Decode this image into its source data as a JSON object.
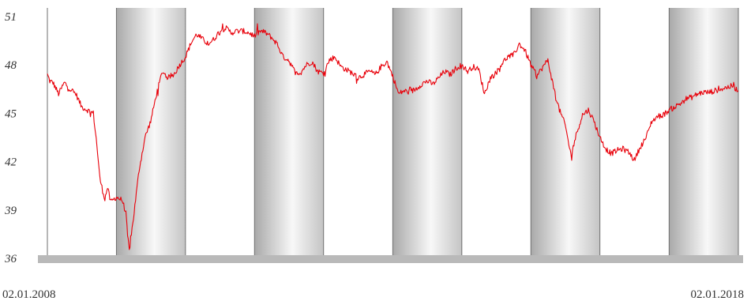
{
  "chart_data": {
    "type": "line",
    "title": "",
    "xlabel": "",
    "ylabel": "",
    "ylim": [
      36,
      51
    ],
    "yticks": [
      51,
      48,
      45,
      42,
      39,
      36
    ],
    "x_start_label": "02.01.2008",
    "x_end_label": "02.01.2018",
    "xlim": [
      "2008-01-02",
      "2018-01-02"
    ],
    "grid": false,
    "shaded_years": [
      2009,
      2011,
      2013,
      2015,
      2017
    ],
    "colors": {
      "line": "#e8000a",
      "band_edge": "#888888",
      "band_center": "#ffffff",
      "axis_bar": "#b9b9b9"
    },
    "series": [
      {
        "name": "",
        "x": [
          "2008-01-02",
          "2008-01-15",
          "2008-02-01",
          "2008-03-01",
          "2008-04-01",
          "2008-05-01",
          "2008-06-01",
          "2008-07-01",
          "2008-08-01",
          "2008-09-01",
          "2008-09-20",
          "2008-10-05",
          "2008-10-20",
          "2008-11-01",
          "2008-11-15",
          "2008-12-01",
          "2009-01-01",
          "2009-02-01",
          "2009-02-20",
          "2009-03-01",
          "2009-03-10",
          "2009-04-01",
          "2009-05-01",
          "2009-06-01",
          "2009-07-01",
          "2009-08-01",
          "2009-09-01",
          "2009-10-01",
          "2009-11-01",
          "2009-12-01",
          "2010-01-01",
          "2010-02-01",
          "2010-03-01",
          "2010-04-01",
          "2010-05-01",
          "2010-06-01",
          "2010-07-01",
          "2010-08-01",
          "2010-09-01",
          "2010-10-01",
          "2010-11-01",
          "2010-12-01",
          "2011-01-01",
          "2011-02-01",
          "2011-03-01",
          "2011-04-01",
          "2011-05-01",
          "2011-06-01",
          "2011-07-01",
          "2011-08-01",
          "2011-09-01",
          "2011-10-01",
          "2011-11-01",
          "2011-12-01",
          "2012-01-01",
          "2012-02-01",
          "2012-03-01",
          "2012-04-01",
          "2012-05-01",
          "2012-06-01",
          "2012-07-01",
          "2012-08-01",
          "2012-09-01",
          "2012-10-01",
          "2012-11-01",
          "2012-12-01",
          "2013-01-01",
          "2013-02-01",
          "2013-03-01",
          "2013-04-01",
          "2013-05-01",
          "2013-06-01",
          "2013-07-01",
          "2013-08-01",
          "2013-09-01",
          "2013-10-01",
          "2013-11-01",
          "2013-12-01",
          "2014-01-01",
          "2014-02-01",
          "2014-03-01",
          "2014-04-01",
          "2014-05-01",
          "2014-06-01",
          "2014-07-01",
          "2014-08-01",
          "2014-09-01",
          "2014-10-01",
          "2014-11-01",
          "2014-12-01",
          "2015-01-01",
          "2015-02-01",
          "2015-03-01",
          "2015-04-01",
          "2015-05-01",
          "2015-06-01",
          "2015-07-01",
          "2015-08-01",
          "2015-09-01",
          "2015-10-01",
          "2015-11-01",
          "2015-12-01",
          "2016-01-01",
          "2016-02-01",
          "2016-03-01",
          "2016-04-01",
          "2016-05-01",
          "2016-06-01",
          "2016-07-01",
          "2016-08-01",
          "2016-09-01",
          "2016-10-01",
          "2016-11-01",
          "2016-12-01",
          "2017-01-01",
          "2017-02-01",
          "2017-03-01",
          "2017-04-01",
          "2017-05-01",
          "2017-06-01",
          "2017-07-01",
          "2017-08-01",
          "2017-09-01",
          "2017-10-01",
          "2017-11-01",
          "2017-12-01",
          "2018-01-02"
        ],
        "y": [
          47.4,
          47.0,
          46.9,
          46.2,
          46.9,
          46.5,
          46.2,
          45.4,
          45.2,
          45.0,
          43.0,
          41.0,
          40.2,
          39.7,
          40.4,
          39.5,
          39.8,
          39.6,
          38.8,
          37.4,
          36.5,
          38.5,
          41.5,
          43.5,
          44.5,
          46.2,
          47.6,
          47.2,
          47.4,
          48.0,
          48.5,
          49.4,
          49.9,
          49.6,
          49.3,
          49.6,
          50.1,
          50.3,
          50.0,
          50.1,
          50.1,
          50.0,
          49.8,
          50.1,
          50.0,
          49.7,
          49.3,
          48.5,
          48.3,
          47.6,
          47.5,
          48.0,
          48.2,
          47.6,
          47.5,
          48.3,
          48.5,
          47.9,
          47.7,
          47.5,
          47.2,
          47.4,
          47.6,
          47.4,
          47.9,
          48.2,
          47.3,
          46.2,
          46.4,
          46.3,
          46.5,
          46.8,
          47.0,
          46.8,
          47.2,
          47.6,
          47.4,
          47.8,
          48.0,
          47.6,
          47.9,
          47.7,
          46.2,
          47.2,
          47.5,
          48.1,
          48.5,
          48.6,
          49.3,
          48.9,
          48.0,
          47.3,
          47.8,
          48.3,
          46.6,
          45.2,
          44.3,
          42.4,
          43.8,
          44.9,
          45.2,
          44.5,
          43.5,
          42.8,
          42.5,
          42.7,
          42.8,
          42.6,
          42.1,
          42.9,
          43.5,
          44.5,
          44.8,
          44.9,
          45.2,
          45.4,
          45.6,
          45.9,
          46.0,
          46.2,
          46.3,
          46.3,
          46.4,
          46.5,
          46.6,
          46.7,
          46.4
        ]
      }
    ]
  }
}
